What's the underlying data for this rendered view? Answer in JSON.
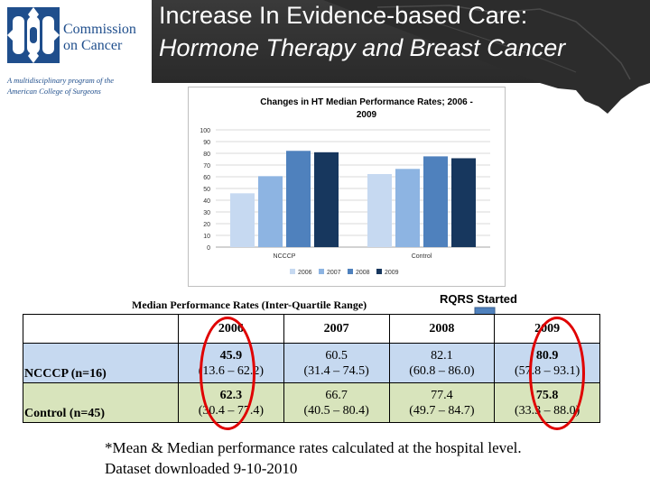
{
  "header": {
    "title_line1": "Increase In Evidence-based Care:",
    "title_line2": "Hormone Therapy and Breast Cancer"
  },
  "logo": {
    "name_line1": "Commission",
    "name_line2": "on Cancer",
    "tagline1": "A multidisciplinary program of the",
    "tagline2": "American College of Surgeons"
  },
  "chart_data": {
    "type": "bar",
    "title": "Changes in HT Median Performance Rates; 2006 - 2009",
    "title_line1": "Changes in HT Median Performance Rates; 2006 -",
    "title_line2": "2009",
    "categories": [
      "NCCCP",
      "Control"
    ],
    "series": [
      {
        "name": "2006",
        "values": [
          45.9,
          62.3
        ],
        "color": "#c6d9f1"
      },
      {
        "name": "2007",
        "values": [
          60.5,
          66.7
        ],
        "color": "#8db4e2"
      },
      {
        "name": "2008",
        "values": [
          82.1,
          77.4
        ],
        "color": "#4f81bd"
      },
      {
        "name": "2009",
        "values": [
          80.9,
          75.8
        ],
        "color": "#17375e"
      }
    ],
    "ylim": [
      0,
      100
    ],
    "yticks": [
      "0",
      "10",
      "20",
      "30",
      "40",
      "50",
      "60",
      "70",
      "80",
      "90",
      "100"
    ],
    "grid": true,
    "legend_position": "bottom"
  },
  "annotation": {
    "rqrs_label": "RQRS Started",
    "arrow_color": "#4f81bd"
  },
  "table": {
    "caption": "Median Performance Rates (Inter-Quartile Range)",
    "columns": [
      "",
      "2006",
      "2007",
      "2008",
      "2009"
    ],
    "rows": [
      {
        "label": "NCCCP (n=16)",
        "cells": [
          {
            "mean": "45.9",
            "iqr": "(13.6 – 62.2)",
            "bold": true
          },
          {
            "mean": "60.5",
            "iqr": "(31.4 – 74.5)",
            "bold": false
          },
          {
            "mean": "82.1",
            "iqr": "(60.8 – 86.0)",
            "bold": false
          },
          {
            "mean": "80.9",
            "iqr": "(57.8 – 93.1)",
            "bold": true
          }
        ]
      },
      {
        "label": "Control (n=45)",
        "cells": [
          {
            "mean": "62.3",
            "iqr": "(30.4 – 77.4)",
            "bold": true
          },
          {
            "mean": "66.7",
            "iqr": "(40.5 – 80.4)",
            "bold": false
          },
          {
            "mean": "77.4",
            "iqr": "(49.7 – 84.7)",
            "bold": false
          },
          {
            "mean": "75.8",
            "iqr": "(33.3 – 88.0)",
            "bold": true
          }
        ]
      }
    ],
    "highlight_color": "#e00000",
    "row_colors": [
      "#c6d9f0",
      "#d8e4bc"
    ]
  },
  "footnote": {
    "line1": "*Mean & Median performance rates calculated at the hospital level.",
    "line2": "Dataset downloaded 9-10-2010"
  }
}
